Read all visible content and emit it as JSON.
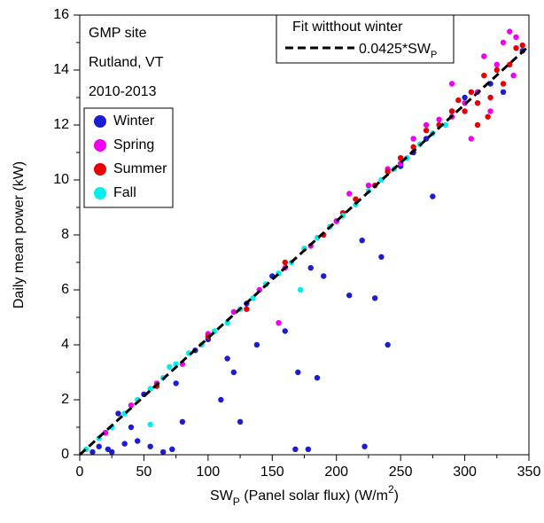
{
  "chart_data": {
    "type": "scatter",
    "xlabel": [
      "SW",
      "P",
      " (Panel solar flux) (W/m",
      "2",
      ")"
    ],
    "ylabel": "Daily mean power (kW)",
    "annotations": [
      "GMP site",
      "Rutland, VT",
      "2010-2013"
    ],
    "xlim": [
      0,
      350
    ],
    "ylim": [
      0,
      16
    ],
    "xticks": [
      0,
      50,
      100,
      150,
      200,
      250,
      300,
      350
    ],
    "yticks": [
      0,
      2,
      4,
      6,
      8,
      10,
      12,
      14,
      16
    ],
    "xminorticks": [
      25,
      75,
      125,
      175,
      225,
      275,
      325
    ],
    "yminorticks": [
      1,
      3,
      5,
      7,
      9,
      11,
      13,
      15
    ],
    "fit": {
      "title": "Fit witthout winter",
      "label": [
        "0.0425*SW",
        "P"
      ],
      "slope": 0.0425,
      "color": "#000000"
    },
    "series": [
      {
        "name": "Winter",
        "color": "#1c1cd0",
        "x": [
          10,
          15,
          20,
          22,
          25,
          30,
          35,
          40,
          45,
          50,
          55,
          60,
          65,
          72,
          75,
          80,
          90,
          100,
          110,
          115,
          120,
          125,
          130,
          138,
          145,
          150,
          160,
          168,
          170,
          178,
          180,
          185,
          190,
          200,
          210,
          220,
          222,
          230,
          235,
          240,
          250,
          260,
          270,
          275,
          290,
          300,
          320,
          330,
          345
        ],
        "y": [
          0.1,
          0.3,
          0.8,
          0.2,
          0.1,
          1.5,
          0.4,
          1.0,
          0.5,
          2.2,
          0.3,
          2.5,
          0.1,
          0.2,
          2.6,
          1.2,
          3.8,
          4.2,
          2.0,
          3.5,
          3.0,
          1.2,
          5.5,
          4.0,
          6.2,
          6.5,
          4.5,
          0.2,
          3.0,
          0.2,
          6.8,
          2.8,
          6.5,
          8.5,
          5.8,
          7.8,
          0.3,
          5.7,
          7.2,
          4.0,
          10.5,
          11.0,
          11.5,
          9.4,
          12.5,
          13.0,
          13.5,
          13.2,
          14.7
        ]
      },
      {
        "name": "Spring",
        "color": "#f000f0",
        "x": [
          20,
          40,
          60,
          80,
          100,
          120,
          140,
          155,
          160,
          180,
          200,
          210,
          225,
          240,
          250,
          260,
          270,
          280,
          290,
          300,
          310,
          315,
          320,
          325,
          330,
          335,
          338,
          340,
          305,
          290
        ],
        "y": [
          0.8,
          1.8,
          2.6,
          3.3,
          4.4,
          5.2,
          6.0,
          4.8,
          6.8,
          7.6,
          8.5,
          9.5,
          9.8,
          10.4,
          10.6,
          11.5,
          12.0,
          12.2,
          12.3,
          12.8,
          13.2,
          14.5,
          12.5,
          14.2,
          15.0,
          15.4,
          13.8,
          15.2,
          11.5,
          13.5
        ]
      },
      {
        "name": "Summer",
        "color": "#e80000",
        "x": [
          60,
          100,
          130,
          160,
          175,
          190,
          205,
          215,
          230,
          240,
          250,
          260,
          270,
          280,
          290,
          295,
          300,
          305,
          310,
          315,
          320,
          325,
          330,
          335,
          340,
          345,
          310,
          318
        ],
        "y": [
          2.5,
          4.3,
          5.3,
          7.0,
          7.5,
          8.0,
          8.8,
          9.3,
          9.8,
          10.3,
          10.8,
          11.2,
          11.8,
          12.0,
          12.5,
          12.9,
          12.5,
          13.2,
          12.8,
          13.8,
          13.0,
          14.0,
          13.5,
          14.2,
          14.8,
          14.9,
          12.0,
          12.3
        ]
      },
      {
        "name": "Fall",
        "color": "#00eeee",
        "x": [
          5,
          15,
          25,
          35,
          45,
          55,
          65,
          70,
          75,
          85,
          95,
          105,
          115,
          125,
          135,
          145,
          155,
          165,
          175,
          185,
          195,
          205,
          215,
          225,
          235,
          245,
          255,
          265,
          275,
          285,
          172,
          55
        ],
        "y": [
          0.2,
          0.6,
          1.0,
          1.5,
          2.0,
          2.4,
          2.8,
          3.2,
          3.3,
          3.7,
          4.0,
          4.5,
          4.8,
          5.3,
          5.7,
          6.2,
          6.6,
          7.0,
          7.5,
          7.9,
          8.3,
          8.7,
          9.1,
          9.6,
          10.0,
          10.4,
          10.8,
          11.3,
          11.7,
          12.0,
          6.0,
          1.1
        ]
      }
    ]
  }
}
